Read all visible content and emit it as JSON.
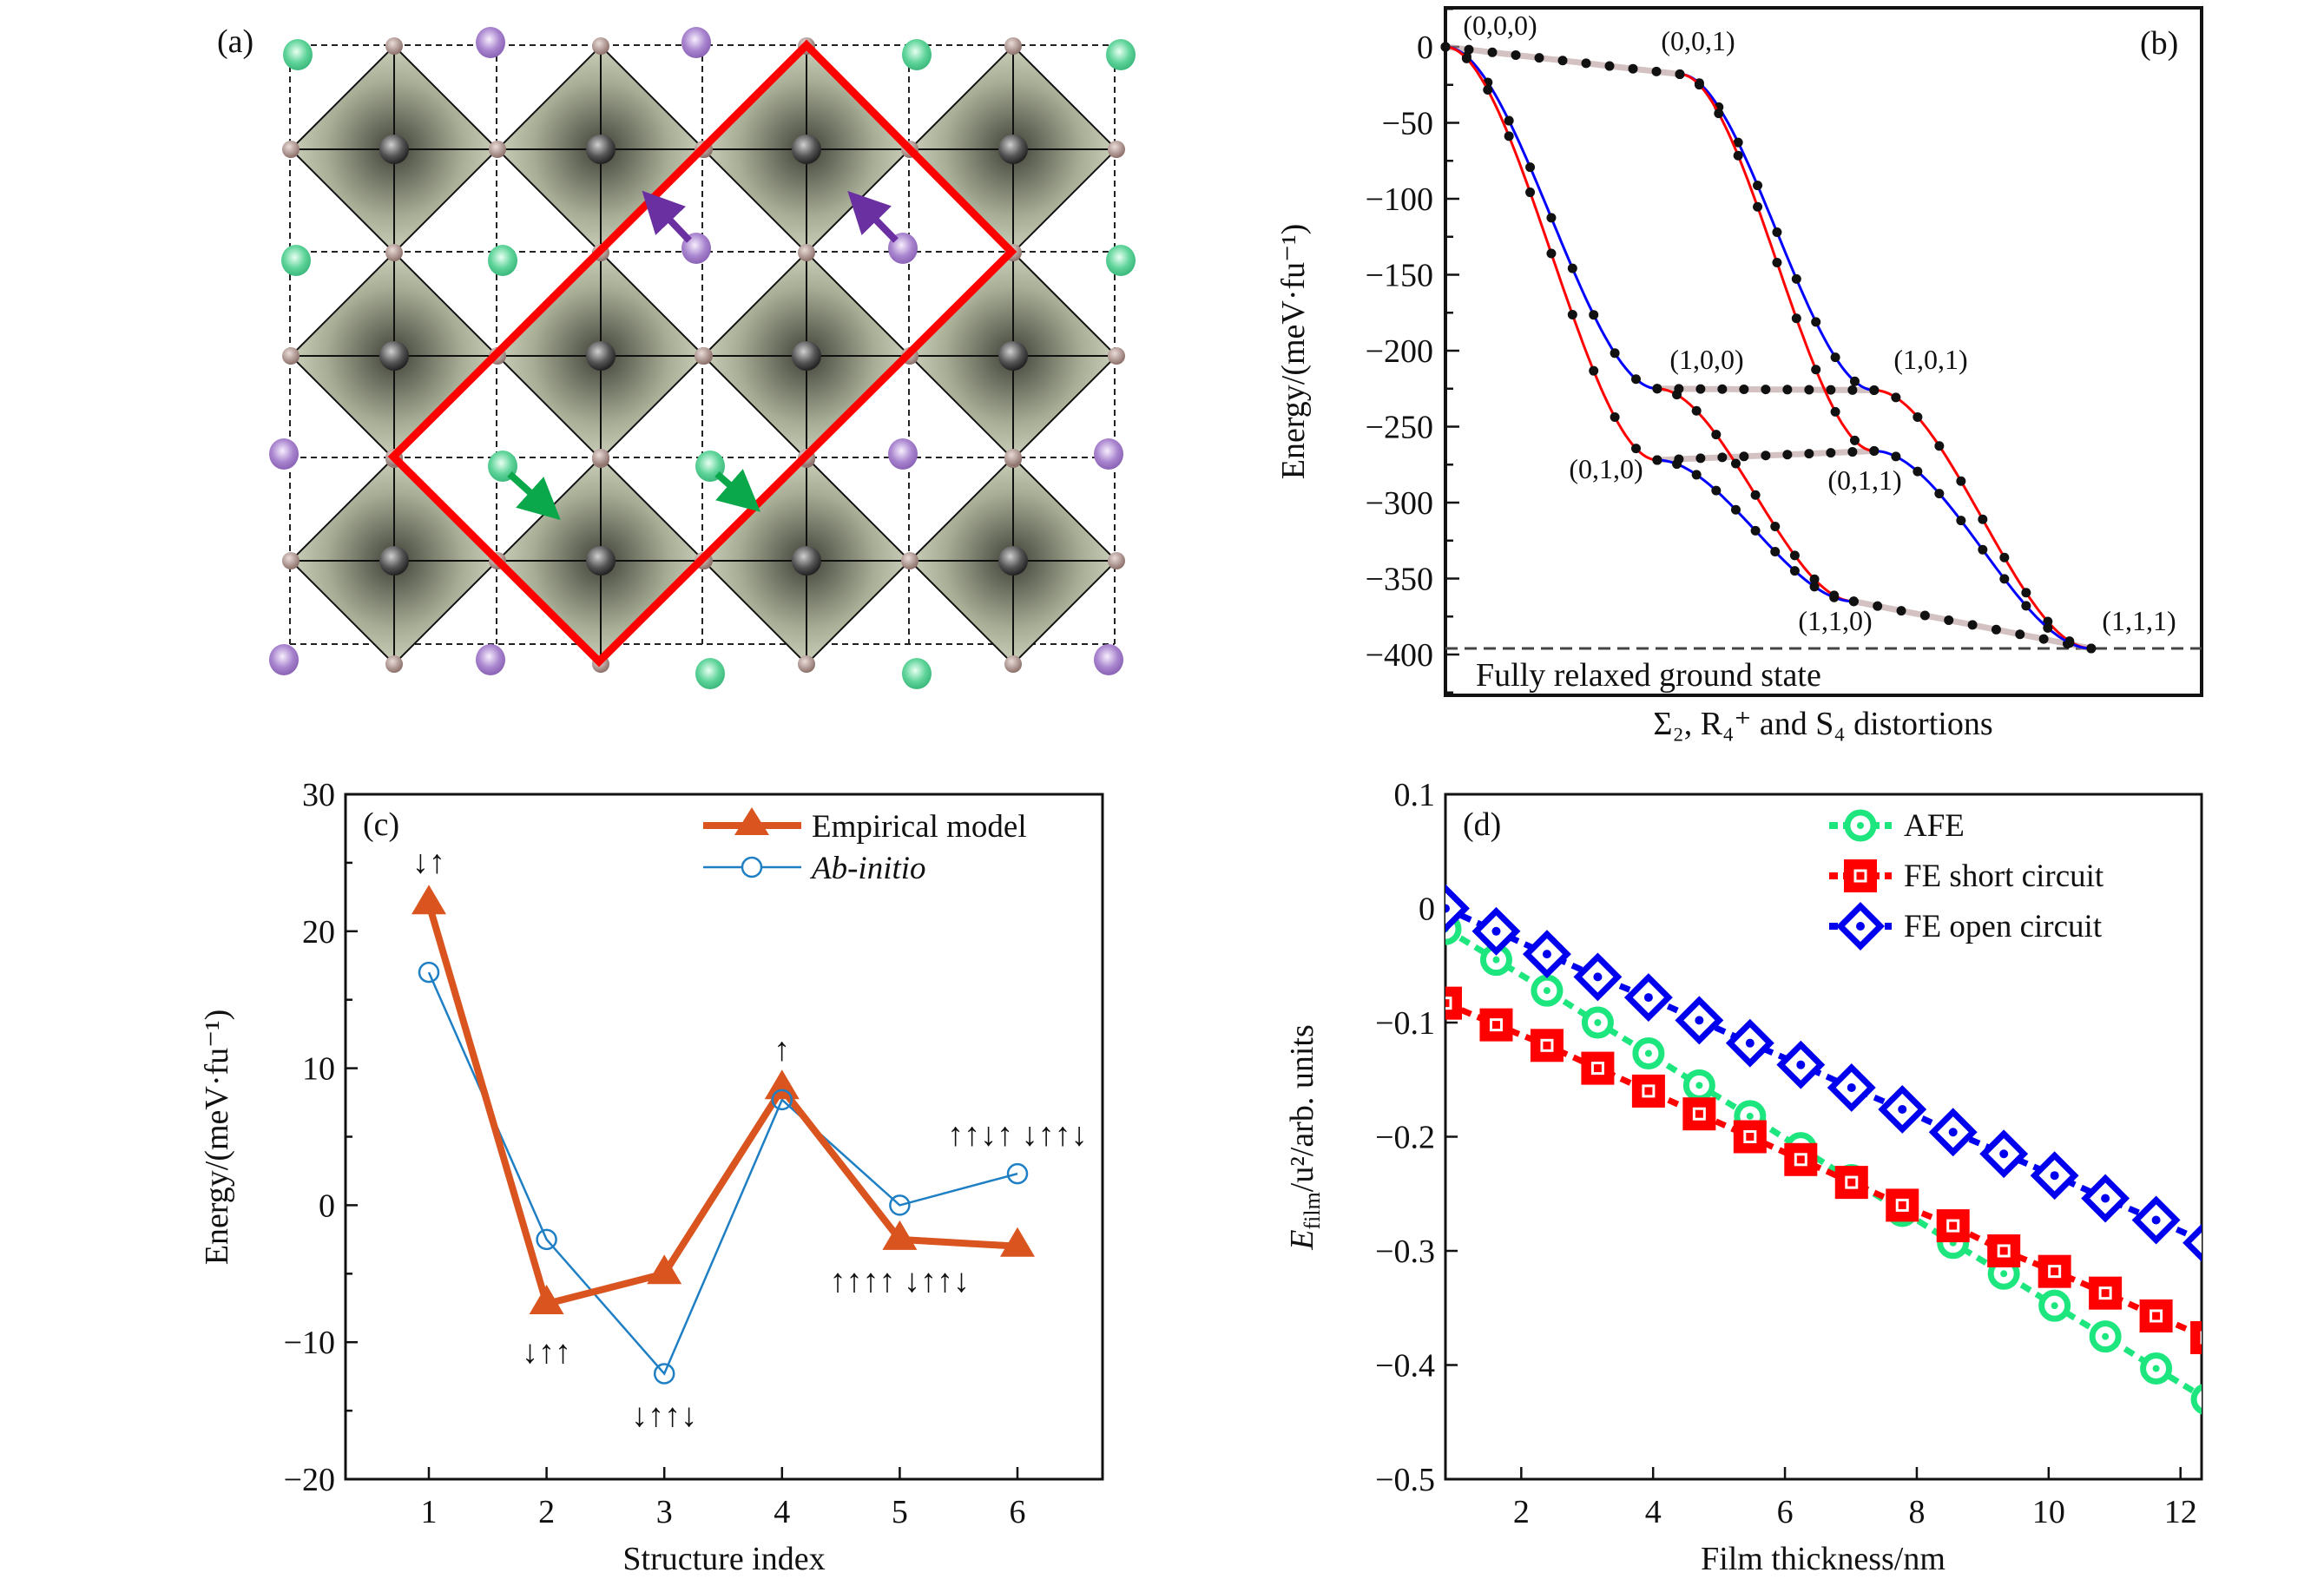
{
  "panels": {
    "a": {
      "label": "(a)"
    },
    "b": {
      "label": "(b)"
    },
    "c": {
      "label": "(c)"
    },
    "d": {
      "label": "(d)"
    }
  },
  "colors": {
    "octahedron": "#d3d9c2",
    "b_site": "#555555",
    "oxygen": "#a88c86",
    "a_site_green": "#5fd49a",
    "a_site_purple": "#a985cf",
    "cell_outline": "#ff0000",
    "arrow_purple": "#6a2fa0",
    "arrow_green": "#0aa84a"
  },
  "chart_data": [
    {
      "panel": "b",
      "type": "line",
      "ylabel": "Energy/(meV·fu⁻¹)",
      "xlabel": "Σ₂, R₄⁺ and S₄ distortions",
      "ylim": [
        -428,
        26
      ],
      "yticks": [
        0,
        -50,
        -100,
        -150,
        -200,
        -250,
        -300,
        -350,
        -400
      ],
      "grid": false,
      "nodes": [
        {
          "label": "(0,0,0)",
          "x": 0.0,
          "y": 0
        },
        {
          "label": "(0,0,1)",
          "x": 0.31,
          "y": -18
        },
        {
          "label": "(1,0,0)",
          "x": 0.28,
          "y": -225
        },
        {
          "label": "(0,1,0)",
          "x": 0.28,
          "y": -272
        },
        {
          "label": "(1,0,1)",
          "x": 0.567,
          "y": -226
        },
        {
          "label": "(0,1,1)",
          "x": 0.567,
          "y": -266
        },
        {
          "label": "(1,1,0)",
          "x": 0.54,
          "y": -365
        },
        {
          "label": "(1,1,1)",
          "x": 0.854,
          "y": -396
        }
      ],
      "edges": [
        {
          "from": "(0,0,0)",
          "to": "(0,0,1)",
          "color": "#b89a9a"
        },
        {
          "from": "(1,0,0)",
          "to": "(1,0,1)",
          "color": "#b89a9a"
        },
        {
          "from": "(0,1,0)",
          "to": "(0,1,1)",
          "color": "#b89a9a"
        },
        {
          "from": "(1,1,0)",
          "to": "(1,1,1)",
          "color": "#b89a9a"
        },
        {
          "from": "(0,0,0)",
          "to": "(1,0,0)",
          "color": "#0000ff"
        },
        {
          "from": "(0,0,0)",
          "to": "(0,1,0)",
          "color": "#ff0000"
        },
        {
          "from": "(0,0,1)",
          "to": "(1,0,1)",
          "color": "#0000ff"
        },
        {
          "from": "(0,0,1)",
          "to": "(0,1,1)",
          "color": "#ff0000"
        },
        {
          "from": "(1,0,0)",
          "to": "(1,1,0)",
          "color": "#ff0000"
        },
        {
          "from": "(0,1,0)",
          "to": "(1,1,0)",
          "color": "#0000ff"
        },
        {
          "from": "(1,0,1)",
          "to": "(1,1,1)",
          "color": "#ff0000"
        },
        {
          "from": "(0,1,1)",
          "to": "(1,1,1)",
          "color": "#0000ff"
        }
      ],
      "reference_line": {
        "y": -396,
        "label": "Fully relaxed ground state"
      }
    },
    {
      "panel": "c",
      "type": "line",
      "xlabel": "Structure index",
      "ylabel": "Energy/(meV·fu⁻¹)",
      "x": [
        1,
        2,
        3,
        4,
        5,
        6
      ],
      "xlim": [
        0.3,
        6.73
      ],
      "ylim": [
        -20,
        30
      ],
      "yticks": [
        -20,
        -10,
        0,
        10,
        20,
        30
      ],
      "legend": "top-right",
      "series": [
        {
          "name": "Empirical model",
          "values": [
            22,
            -7.2,
            -5,
            8.5,
            -2.5,
            -3
          ],
          "color": "#d9541e",
          "marker": "triangle"
        },
        {
          "name": "Ab-initio",
          "values": [
            17,
            -2.5,
            -12.3,
            7.7,
            0,
            2.3
          ],
          "color": "#1f7fc4",
          "marker": "open-circle"
        }
      ],
      "annotations": [
        {
          "x": 1,
          "y": 25.1,
          "text": "↓↑"
        },
        {
          "x": 2,
          "y": -10.7,
          "text": "↓↑↑"
        },
        {
          "x": 3,
          "y": -15.3,
          "text": "↓↑↑↓"
        },
        {
          "x": 4,
          "y": 11.4,
          "text": "↑"
        },
        {
          "x": 5,
          "y": -5.5,
          "text": "↑↑↑↑ ↓↑↑↓"
        },
        {
          "x": 6,
          "y": 5.2,
          "text": "↑↑↓↑ ↓↑↑↓"
        }
      ]
    },
    {
      "panel": "d",
      "type": "line",
      "xlabel": "Film thickness/nm",
      "ylabel": {
        "main": "E",
        "sub": "film",
        "rest": "/u²/arb. units"
      },
      "xlim": [
        0.85,
        12.32
      ],
      "ylim": [
        -0.5,
        0.1
      ],
      "xticks": [
        2,
        4,
        6,
        8,
        10,
        12
      ],
      "yticks": [
        0.1,
        0,
        -0.1,
        -0.2,
        -0.3,
        -0.4,
        -0.5
      ],
      "legend": "top-right",
      "x": [
        0.85,
        1.62,
        2.39,
        3.16,
        3.93,
        4.7,
        5.47,
        6.24,
        7.01,
        7.78,
        8.55,
        9.32,
        10.09,
        10.86,
        11.63,
        12.4
      ],
      "series": [
        {
          "name": "AFE",
          "color": "#1ee67e",
          "marker": "circle",
          "values": [
            -0.018,
            -0.045,
            -0.072,
            -0.1,
            -0.127,
            -0.155,
            -0.182,
            -0.21,
            -0.238,
            -0.265,
            -0.293,
            -0.32,
            -0.348,
            -0.375,
            -0.403,
            -0.43
          ]
        },
        {
          "name": "FE short circuit",
          "color": "#ff0000",
          "marker": "square",
          "values": [
            -0.083,
            -0.102,
            -0.12,
            -0.14,
            -0.16,
            -0.18,
            -0.2,
            -0.22,
            -0.24,
            -0.26,
            -0.278,
            -0.3,
            -0.318,
            -0.337,
            -0.357,
            -0.376
          ]
        },
        {
          "name": "FE open circuit",
          "color": "#0000ee",
          "marker": "diamond",
          "values": [
            0,
            -0.02,
            -0.04,
            -0.06,
            -0.078,
            -0.098,
            -0.118,
            -0.137,
            -0.157,
            -0.176,
            -0.196,
            -0.215,
            -0.234,
            -0.254,
            -0.273,
            -0.293
          ]
        }
      ]
    }
  ]
}
